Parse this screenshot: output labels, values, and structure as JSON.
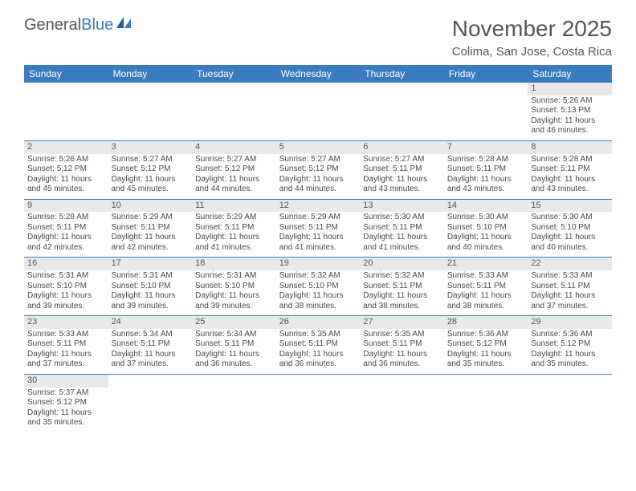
{
  "logo": {
    "text1": "General",
    "text2": "Blue"
  },
  "title": "November 2025",
  "subtitle": "Colima, San Jose, Costa Rica",
  "colors": {
    "header_bg": "#3a7bbf",
    "header_fg": "#ffffff",
    "daynum_bg": "#e9e9e9",
    "border": "#3a7bbf",
    "text": "#4a4a4a",
    "logo_blue": "#3a7bbf"
  },
  "font": {
    "family": "Arial",
    "title_size": 28,
    "subtitle_size": 15,
    "header_size": 12,
    "cell_size": 10
  },
  "weekdays": [
    "Sunday",
    "Monday",
    "Tuesday",
    "Wednesday",
    "Thursday",
    "Friday",
    "Saturday"
  ],
  "weeks": [
    [
      null,
      null,
      null,
      null,
      null,
      null,
      {
        "n": "1",
        "sr": "Sunrise: 5:26 AM",
        "ss": "Sunset: 5:13 PM",
        "d1": "Daylight: 11 hours",
        "d2": "and 46 minutes."
      }
    ],
    [
      {
        "n": "2",
        "sr": "Sunrise: 5:26 AM",
        "ss": "Sunset: 5:12 PM",
        "d1": "Daylight: 11 hours",
        "d2": "and 45 minutes."
      },
      {
        "n": "3",
        "sr": "Sunrise: 5:27 AM",
        "ss": "Sunset: 5:12 PM",
        "d1": "Daylight: 11 hours",
        "d2": "and 45 minutes."
      },
      {
        "n": "4",
        "sr": "Sunrise: 5:27 AM",
        "ss": "Sunset: 5:12 PM",
        "d1": "Daylight: 11 hours",
        "d2": "and 44 minutes."
      },
      {
        "n": "5",
        "sr": "Sunrise: 5:27 AM",
        "ss": "Sunset: 5:12 PM",
        "d1": "Daylight: 11 hours",
        "d2": "and 44 minutes."
      },
      {
        "n": "6",
        "sr": "Sunrise: 5:27 AM",
        "ss": "Sunset: 5:11 PM",
        "d1": "Daylight: 11 hours",
        "d2": "and 43 minutes."
      },
      {
        "n": "7",
        "sr": "Sunrise: 5:28 AM",
        "ss": "Sunset: 5:11 PM",
        "d1": "Daylight: 11 hours",
        "d2": "and 43 minutes."
      },
      {
        "n": "8",
        "sr": "Sunrise: 5:28 AM",
        "ss": "Sunset: 5:11 PM",
        "d1": "Daylight: 11 hours",
        "d2": "and 43 minutes."
      }
    ],
    [
      {
        "n": "9",
        "sr": "Sunrise: 5:28 AM",
        "ss": "Sunset: 5:11 PM",
        "d1": "Daylight: 11 hours",
        "d2": "and 42 minutes."
      },
      {
        "n": "10",
        "sr": "Sunrise: 5:29 AM",
        "ss": "Sunset: 5:11 PM",
        "d1": "Daylight: 11 hours",
        "d2": "and 42 minutes."
      },
      {
        "n": "11",
        "sr": "Sunrise: 5:29 AM",
        "ss": "Sunset: 5:11 PM",
        "d1": "Daylight: 11 hours",
        "d2": "and 41 minutes."
      },
      {
        "n": "12",
        "sr": "Sunrise: 5:29 AM",
        "ss": "Sunset: 5:11 PM",
        "d1": "Daylight: 11 hours",
        "d2": "and 41 minutes."
      },
      {
        "n": "13",
        "sr": "Sunrise: 5:30 AM",
        "ss": "Sunset: 5:11 PM",
        "d1": "Daylight: 11 hours",
        "d2": "and 41 minutes."
      },
      {
        "n": "14",
        "sr": "Sunrise: 5:30 AM",
        "ss": "Sunset: 5:10 PM",
        "d1": "Daylight: 11 hours",
        "d2": "and 40 minutes."
      },
      {
        "n": "15",
        "sr": "Sunrise: 5:30 AM",
        "ss": "Sunset: 5:10 PM",
        "d1": "Daylight: 11 hours",
        "d2": "and 40 minutes."
      }
    ],
    [
      {
        "n": "16",
        "sr": "Sunrise: 5:31 AM",
        "ss": "Sunset: 5:10 PM",
        "d1": "Daylight: 11 hours",
        "d2": "and 39 minutes."
      },
      {
        "n": "17",
        "sr": "Sunrise: 5:31 AM",
        "ss": "Sunset: 5:10 PM",
        "d1": "Daylight: 11 hours",
        "d2": "and 39 minutes."
      },
      {
        "n": "18",
        "sr": "Sunrise: 5:31 AM",
        "ss": "Sunset: 5:10 PM",
        "d1": "Daylight: 11 hours",
        "d2": "and 39 minutes."
      },
      {
        "n": "19",
        "sr": "Sunrise: 5:32 AM",
        "ss": "Sunset: 5:10 PM",
        "d1": "Daylight: 11 hours",
        "d2": "and 38 minutes."
      },
      {
        "n": "20",
        "sr": "Sunrise: 5:32 AM",
        "ss": "Sunset: 5:11 PM",
        "d1": "Daylight: 11 hours",
        "d2": "and 38 minutes."
      },
      {
        "n": "21",
        "sr": "Sunrise: 5:33 AM",
        "ss": "Sunset: 5:11 PM",
        "d1": "Daylight: 11 hours",
        "d2": "and 38 minutes."
      },
      {
        "n": "22",
        "sr": "Sunrise: 5:33 AM",
        "ss": "Sunset: 5:11 PM",
        "d1": "Daylight: 11 hours",
        "d2": "and 37 minutes."
      }
    ],
    [
      {
        "n": "23",
        "sr": "Sunrise: 5:33 AM",
        "ss": "Sunset: 5:11 PM",
        "d1": "Daylight: 11 hours",
        "d2": "and 37 minutes."
      },
      {
        "n": "24",
        "sr": "Sunrise: 5:34 AM",
        "ss": "Sunset: 5:11 PM",
        "d1": "Daylight: 11 hours",
        "d2": "and 37 minutes."
      },
      {
        "n": "25",
        "sr": "Sunrise: 5:34 AM",
        "ss": "Sunset: 5:11 PM",
        "d1": "Daylight: 11 hours",
        "d2": "and 36 minutes."
      },
      {
        "n": "26",
        "sr": "Sunrise: 5:35 AM",
        "ss": "Sunset: 5:11 PM",
        "d1": "Daylight: 11 hours",
        "d2": "and 36 minutes."
      },
      {
        "n": "27",
        "sr": "Sunrise: 5:35 AM",
        "ss": "Sunset: 5:11 PM",
        "d1": "Daylight: 11 hours",
        "d2": "and 36 minutes."
      },
      {
        "n": "28",
        "sr": "Sunrise: 5:36 AM",
        "ss": "Sunset: 5:12 PM",
        "d1": "Daylight: 11 hours",
        "d2": "and 35 minutes."
      },
      {
        "n": "29",
        "sr": "Sunrise: 5:36 AM",
        "ss": "Sunset: 5:12 PM",
        "d1": "Daylight: 11 hours",
        "d2": "and 35 minutes."
      }
    ],
    [
      {
        "n": "30",
        "sr": "Sunrise: 5:37 AM",
        "ss": "Sunset: 5:12 PM",
        "d1": "Daylight: 11 hours",
        "d2": "and 35 minutes."
      },
      null,
      null,
      null,
      null,
      null,
      null
    ]
  ]
}
